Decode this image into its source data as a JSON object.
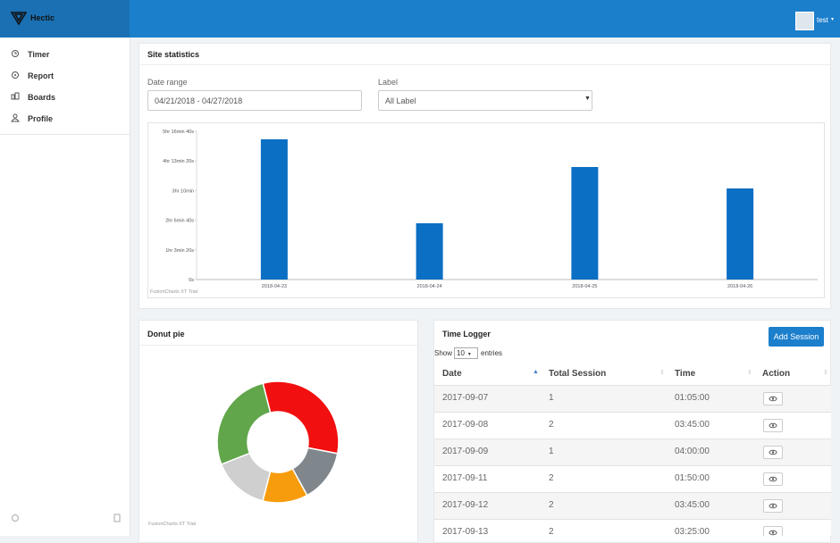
{
  "brand": "Hectic",
  "user": "test",
  "nav": [
    "Timer",
    "Report",
    "Boards",
    "Profile"
  ],
  "stats_panel": {
    "title": "Site statistics",
    "date_label": "Date range",
    "date_value": "04/21/2018 - 04/27/2018",
    "label_label": "Label",
    "label_value": "All Label"
  },
  "chart_data": [
    {
      "type": "bar",
      "categories": [
        "2018-04-23",
        "2018-04-24",
        "2018-04-25",
        "2018-04-26"
      ],
      "values": [
        17970,
        7210,
        14420,
        11675
      ],
      "color": "#0b6fc4",
      "ylim": [
        0,
        19000
      ],
      "yticks": [
        {
          "value": 0,
          "label": "0s"
        },
        {
          "value": 3800,
          "label": "1hr 3min 20s"
        },
        {
          "value": 7600,
          "label": "2hr 6min 40s"
        },
        {
          "value": 11400,
          "label": "3hr 10min"
        },
        {
          "value": 15200,
          "label": "4hr 13min 20s"
        },
        {
          "value": 19000,
          "label": "5hr 16min 40s"
        }
      ],
      "grid": false,
      "credit": "FusionCharts XT Trial"
    },
    {
      "type": "pie",
      "title": "Donut pie",
      "values": [
        32,
        14,
        12,
        15,
        27
      ],
      "colors": [
        "#f20f0f",
        "#7f868c",
        "#f79c0c",
        "#cfcfcf",
        "#61a64a"
      ],
      "donut": true,
      "credit": "FusionCharts XT Trial"
    }
  ],
  "time_logger": {
    "title": "Time Logger",
    "button": "Add Session",
    "show": "Show",
    "entries_count": "10",
    "entries": "entries",
    "columns": [
      "Date",
      "Total Session",
      "Time",
      "Action"
    ],
    "rows": [
      [
        "2017-09-07",
        1,
        "01:05:00"
      ],
      [
        "2017-09-08",
        2,
        "03:45:00"
      ],
      [
        "2017-09-09",
        1,
        "04:00:00"
      ],
      [
        "2017-09-11",
        2,
        "01:50:00"
      ],
      [
        "2017-09-12",
        2,
        "03:45:00"
      ],
      [
        "2017-09-13",
        2,
        "03:25:00"
      ]
    ]
  }
}
